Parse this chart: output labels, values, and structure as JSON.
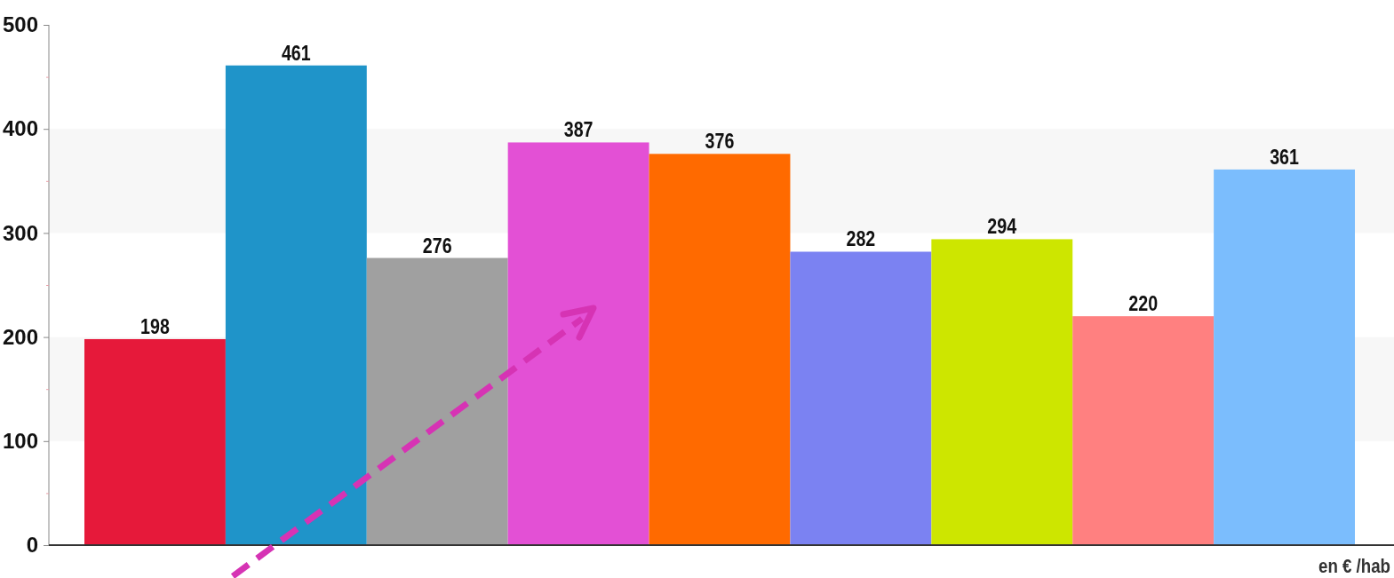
{
  "chart_data": {
    "type": "bar",
    "categories": [
      null,
      null,
      null,
      null,
      null,
      null,
      null,
      null,
      null
    ],
    "values": [
      198,
      461,
      276,
      387,
      376,
      282,
      294,
      220,
      361
    ],
    "colors": [
      "#e6193a",
      "#1f94c9",
      "#a0a0a0",
      "#e350d5",
      "#ff6a00",
      "#7b82f2",
      "#cde600",
      "#ff8080",
      "#7bbdfd"
    ],
    "data_labels": true,
    "xlabel": "en € /hab",
    "ylim": [
      0,
      500
    ],
    "yticks": [
      0,
      {
        "value": 50,
        "label": null
      },
      100,
      {
        "value": 150,
        "label": null
      },
      200,
      {
        "value": 250,
        "label": null
      },
      300,
      {
        "value": 350,
        "label": null
      },
      400,
      {
        "value": 450,
        "label": null
      },
      500
    ],
    "bands": [
      {
        "axis": "y",
        "from": 100,
        "to": 200,
        "color": "#f7f7f7"
      },
      {
        "axis": "y",
        "from": 300,
        "to": 400,
        "color": "#f7f7f7"
      }
    ]
  }
}
